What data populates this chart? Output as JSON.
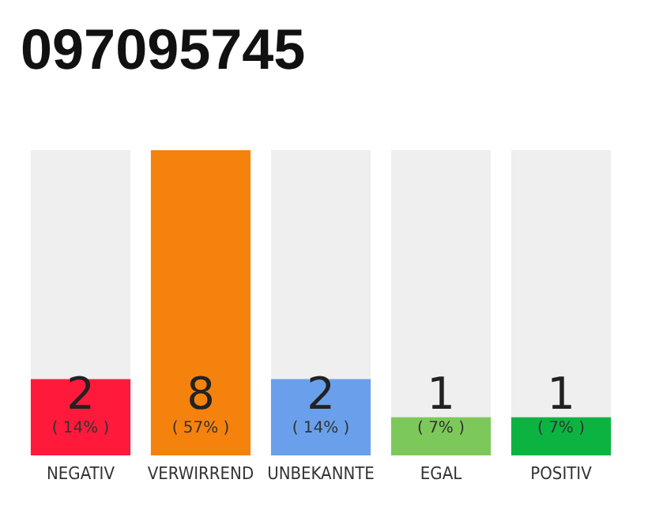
{
  "chart_data": {
    "type": "bar",
    "title": "097095745",
    "categories": [
      "NEGATIV",
      "VERWIRREND",
      "UNBEKANNTE",
      "EGAL",
      "POSITIV"
    ],
    "values": [
      2,
      8,
      2,
      1,
      1
    ],
    "colors": [
      "#ff1a3c",
      "#f5820d",
      "#6aa0eb",
      "#7dc85a",
      "#0db341"
    ],
    "value_labels": [
      "2\n( 14% )",
      "8\n( 57% )",
      "2\n( 14% )",
      "1\n( 7% )",
      "1\n( 7% )"
    ],
    "data_labels": true,
    "ylim": [
      0,
      8
    ]
  }
}
